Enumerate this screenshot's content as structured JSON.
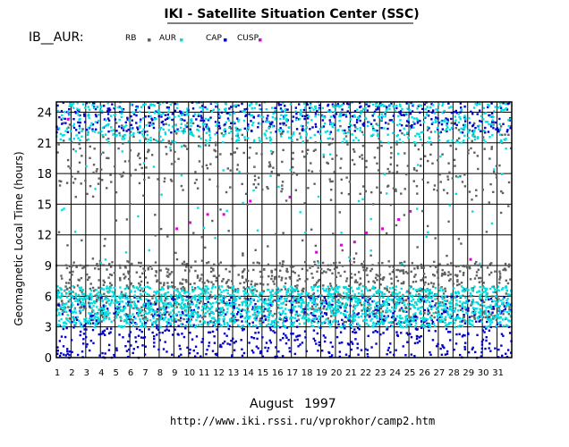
{
  "header": {
    "title": "IKI - Satellite Situation Center (SSC)",
    "dataset": "IB__AUR:"
  },
  "legend": [
    {
      "label": "RB",
      "color": "#606060"
    },
    {
      "label": "AUR",
      "color": "#00e0e0"
    },
    {
      "label": "CAP",
      "color": "#0000c8"
    },
    {
      "label": "CUSP",
      "color": "#e000e0"
    }
  ],
  "footer": {
    "month": "August",
    "year": "1997",
    "url": "http://www.iki.rssi.ru/vprokhor/camp2.htm"
  },
  "chart_data": {
    "type": "scatter",
    "title": "",
    "xlabel": "",
    "ylabel": "Geomagnetic Local Time (hours)",
    "xlim": [
      1,
      32
    ],
    "ylim": [
      0,
      25
    ],
    "x_ticks": [
      "1",
      "2",
      "3",
      "4",
      "5",
      "6",
      "7",
      "8",
      "9",
      "10",
      "11",
      "12",
      "13",
      "14",
      "15",
      "16",
      "17",
      "18",
      "19",
      "20",
      "21",
      "22",
      "23",
      "24",
      "25",
      "26",
      "27",
      "28",
      "29",
      "30",
      "31"
    ],
    "y_ticks": [
      "0",
      "3",
      "6",
      "9",
      "12",
      "15",
      "18",
      "21",
      "24"
    ],
    "grid": true,
    "legend_position": "top",
    "series": [
      {
        "name": "RB",
        "color": "#606060",
        "bands": [
          {
            "x": [
              1,
              32
            ],
            "y": [
              3.5,
              9.5
            ],
            "density": 34
          },
          {
            "x": [
              1,
              32
            ],
            "y": [
              16.0,
              23.0
            ],
            "density": 13
          },
          {
            "x": [
              1,
              32
            ],
            "y": [
              9.5,
              16.0
            ],
            "density": 1.5
          }
        ]
      },
      {
        "name": "AUR",
        "color": "#00e0e0",
        "bands": [
          {
            "x": [
              1,
              32
            ],
            "y": [
              3.0,
              7.0
            ],
            "density": 52
          },
          {
            "x": [
              1,
              32
            ],
            "y": [
              21.0,
              25.0
            ],
            "density": 22
          },
          {
            "x": [
              1,
              32
            ],
            "y": [
              9.0,
              21.0
            ],
            "density": 1.6
          }
        ]
      },
      {
        "name": "CAP",
        "color": "#0000c8",
        "bands": [
          {
            "x": [
              1,
              32
            ],
            "y": [
              0.0,
              6.0
            ],
            "density": 26
          },
          {
            "x": [
              1,
              32
            ],
            "y": [
              22.0,
              25.0
            ],
            "density": 15
          }
        ]
      },
      {
        "name": "CUSP",
        "color": "#e000e0",
        "points": [
          {
            "x": 1.8,
            "y": 23.3
          },
          {
            "x": 9.2,
            "y": 12.6
          },
          {
            "x": 10.1,
            "y": 13.2
          },
          {
            "x": 11.3,
            "y": 14.0
          },
          {
            "x": 12.4,
            "y": 14.0
          },
          {
            "x": 14.2,
            "y": 15.3
          },
          {
            "x": 16.9,
            "y": 15.7
          },
          {
            "x": 18.7,
            "y": 10.3
          },
          {
            "x": 20.4,
            "y": 11.0
          },
          {
            "x": 21.3,
            "y": 11.3
          },
          {
            "x": 22.1,
            "y": 12.2
          },
          {
            "x": 23.2,
            "y": 12.6
          },
          {
            "x": 24.3,
            "y": 13.5
          },
          {
            "x": 25.1,
            "y": 14.3
          },
          {
            "x": 29.2,
            "y": 9.6
          }
        ]
      }
    ]
  }
}
